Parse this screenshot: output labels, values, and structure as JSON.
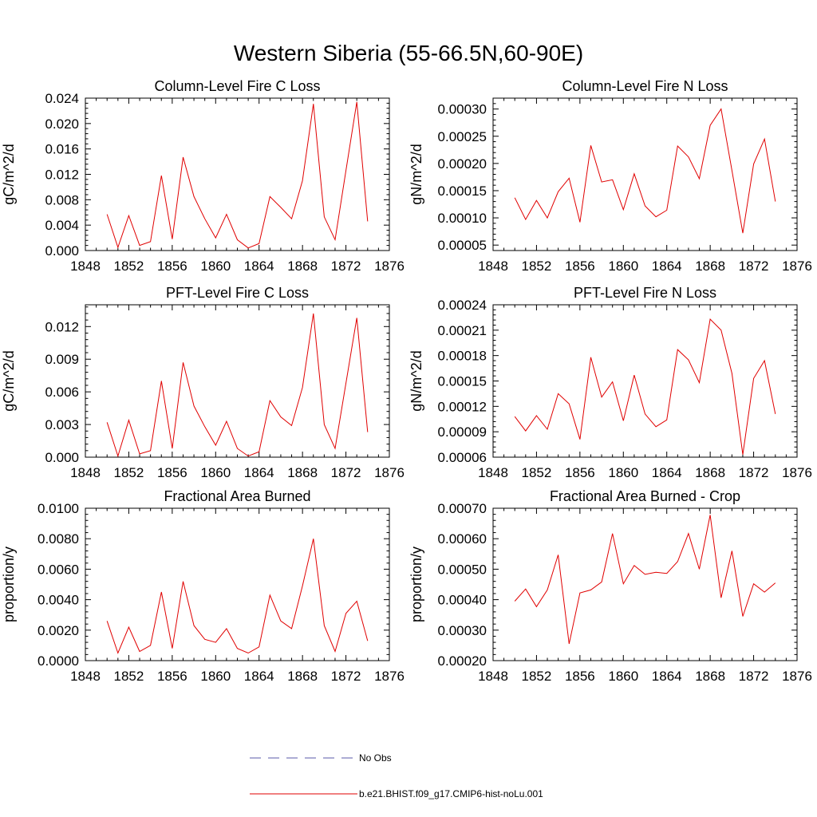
{
  "title": "Western Siberia (55-66.5N,60-90E)",
  "legend": {
    "items": [
      {
        "label": "No Obs",
        "color": "#5a5aa8",
        "dash": "14,9"
      },
      {
        "label": "b.e21.BHIST.f09_g17.CMIP6-hist-noLu.001",
        "color": "#e00000",
        "dash": ""
      }
    ]
  },
  "chart_data": [
    {
      "type": "line",
      "title": "Column-Level Fire C Loss",
      "ylabel": "gC/m^2/d",
      "xlim": [
        1848,
        1876
      ],
      "xticks": [
        "1848",
        "1852",
        "1856",
        "1860",
        "1864",
        "1868",
        "1872",
        "1876"
      ],
      "ylim": [
        0,
        0.024
      ],
      "yticks": [
        "0.000",
        "0.004",
        "0.008",
        "0.012",
        "0.016",
        "0.020",
        "0.024"
      ],
      "x": [
        1850,
        1851,
        1852,
        1853,
        1854,
        1855,
        1856,
        1857,
        1858,
        1859,
        1860,
        1861,
        1862,
        1863,
        1864,
        1865,
        1866,
        1867,
        1868,
        1869,
        1870,
        1871,
        1872,
        1873,
        1874
      ],
      "series": [
        {
          "name": "b.e21.BHIST.f09_g17.CMIP6-hist-noLu.001",
          "values": [
            0.0057,
            0.0005,
            0.0055,
            0.0008,
            0.0014,
            0.0118,
            0.0018,
            0.0147,
            0.0085,
            0.005,
            0.002,
            0.0057,
            0.0017,
            0.0004,
            0.0011,
            0.0085,
            0.0068,
            0.005,
            0.011,
            0.0231,
            0.0053,
            0.0017,
            0.0126,
            0.0234,
            0.0046
          ]
        }
      ]
    },
    {
      "type": "line",
      "title": "Column-Level Fire N Loss",
      "ylabel": "gN/m^2/d",
      "xlim": [
        1848,
        1876
      ],
      "xticks": [
        "1848",
        "1852",
        "1856",
        "1860",
        "1864",
        "1868",
        "1872",
        "1876"
      ],
      "ylim": [
        4e-05,
        0.00032
      ],
      "yticks": [
        "0.00005",
        "0.00010",
        "0.00015",
        "0.00020",
        "0.00025",
        "0.00030"
      ],
      "ytick_values": [
        5e-05,
        0.0001,
        0.00015,
        0.0002,
        0.00025,
        0.0003
      ],
      "x": [
        1850,
        1851,
        1852,
        1853,
        1854,
        1855,
        1856,
        1857,
        1858,
        1859,
        1860,
        1861,
        1862,
        1863,
        1864,
        1865,
        1866,
        1867,
        1868,
        1869,
        1870,
        1871,
        1872,
        1873,
        1874
      ],
      "series": [
        {
          "name": "b.e21.BHIST.f09_g17.CMIP6-hist-noLu.001",
          "values": [
            0.000137,
            9.7e-05,
            0.000132,
            0.0001,
            0.000148,
            0.000173,
            9.2e-05,
            0.000233,
            0.000166,
            0.00017,
            0.000115,
            0.000181,
            0.000122,
            0.000102,
            0.000114,
            0.000232,
            0.000212,
            0.000172,
            0.00027,
            0.0003,
            0.000187,
            7.2e-05,
            0.000199,
            0.000245,
            0.00013
          ]
        }
      ]
    },
    {
      "type": "line",
      "title": "PFT-Level Fire C Loss",
      "ylabel": "gC/m^2/d",
      "xlim": [
        1848,
        1876
      ],
      "xticks": [
        "1848",
        "1852",
        "1856",
        "1860",
        "1864",
        "1868",
        "1872",
        "1876"
      ],
      "ylim": [
        0,
        0.014
      ],
      "yticks": [
        "0.000",
        "0.003",
        "0.006",
        "0.009",
        "0.012"
      ],
      "ytick_values": [
        0,
        0.003,
        0.006,
        0.009,
        0.012
      ],
      "x": [
        1850,
        1851,
        1852,
        1853,
        1854,
        1855,
        1856,
        1857,
        1858,
        1859,
        1860,
        1861,
        1862,
        1863,
        1864,
        1865,
        1866,
        1867,
        1868,
        1869,
        1870,
        1871,
        1872,
        1873,
        1874
      ],
      "series": [
        {
          "name": "b.e21.BHIST.f09_g17.CMIP6-hist-noLu.001",
          "values": [
            0.0032,
            0.0001,
            0.0034,
            0.0003,
            0.0006,
            0.007,
            0.0008,
            0.0087,
            0.0047,
            0.0028,
            0.0011,
            0.0033,
            0.0008,
            0.0001,
            0.0005,
            0.0052,
            0.0037,
            0.0029,
            0.0064,
            0.0132,
            0.003,
            0.0008,
            0.0068,
            0.0128,
            0.0023
          ]
        }
      ]
    },
    {
      "type": "line",
      "title": "PFT-Level Fire N Loss",
      "ylabel": "gN/m^2/d",
      "xlim": [
        1848,
        1876
      ],
      "xticks": [
        "1848",
        "1852",
        "1856",
        "1860",
        "1864",
        "1868",
        "1872",
        "1876"
      ],
      "ylim": [
        6e-05,
        0.00024
      ],
      "yticks": [
        "0.00006",
        "0.00009",
        "0.00012",
        "0.00015",
        "0.00018",
        "0.00021",
        "0.00024"
      ],
      "ytick_values": [
        6e-05,
        9e-05,
        0.00012,
        0.00015,
        0.00018,
        0.00021,
        0.00024
      ],
      "x": [
        1850,
        1851,
        1852,
        1853,
        1854,
        1855,
        1856,
        1857,
        1858,
        1859,
        1860,
        1861,
        1862,
        1863,
        1864,
        1865,
        1866,
        1867,
        1868,
        1869,
        1870,
        1871,
        1872,
        1873,
        1874
      ],
      "series": [
        {
          "name": "b.e21.BHIST.f09_g17.CMIP6-hist-noLu.001",
          "values": [
            0.000108,
            9.1e-05,
            0.000109,
            9.3e-05,
            0.000135,
            0.000123,
            8.1e-05,
            0.000178,
            0.000131,
            0.000149,
            0.000103,
            0.000157,
            0.000111,
            9.6e-05,
            0.000104,
            0.000187,
            0.000175,
            0.000148,
            0.000223,
            0.00021,
            0.000159,
            6.3e-05,
            0.000153,
            0.000174,
            0.000111
          ]
        }
      ]
    },
    {
      "type": "line",
      "title": "Fractional Area Burned",
      "ylabel": "proportion/y",
      "xlim": [
        1848,
        1876
      ],
      "xticks": [
        "1848",
        "1852",
        "1856",
        "1860",
        "1864",
        "1868",
        "1872",
        "1876"
      ],
      "ylim": [
        0,
        0.01
      ],
      "yticks": [
        "0.0000",
        "0.0020",
        "0.0040",
        "0.0060",
        "0.0080",
        "0.0100"
      ],
      "ytick_values": [
        0,
        0.002,
        0.004,
        0.006,
        0.008,
        0.01
      ],
      "x": [
        1850,
        1851,
        1852,
        1853,
        1854,
        1855,
        1856,
        1857,
        1858,
        1859,
        1860,
        1861,
        1862,
        1863,
        1864,
        1865,
        1866,
        1867,
        1868,
        1869,
        1870,
        1871,
        1872,
        1873,
        1874
      ],
      "series": [
        {
          "name": "b.e21.BHIST.f09_g17.CMIP6-hist-noLu.001",
          "values": [
            0.0026,
            0.0005,
            0.0022,
            0.0006,
            0.001,
            0.0045,
            0.0008,
            0.0052,
            0.0023,
            0.0014,
            0.0012,
            0.0021,
            0.0008,
            0.0005,
            0.0009,
            0.0043,
            0.0026,
            0.0021,
            0.0049,
            0.008,
            0.0023,
            0.0006,
            0.0031,
            0.0039,
            0.0013
          ]
        }
      ]
    },
    {
      "type": "line",
      "title": "Fractional Area Burned - Crop",
      "ylabel": "proportion/y",
      "xlim": [
        1848,
        1876
      ],
      "xticks": [
        "1848",
        "1852",
        "1856",
        "1860",
        "1864",
        "1868",
        "1872",
        "1876"
      ],
      "ylim": [
        0.0002,
        0.0007
      ],
      "yticks": [
        "0.00020",
        "0.00030",
        "0.00040",
        "0.00050",
        "0.00060",
        "0.00070"
      ],
      "ytick_values": [
        0.0002,
        0.0003,
        0.0004,
        0.0005,
        0.0006,
        0.0007
      ],
      "x": [
        1850,
        1851,
        1852,
        1853,
        1854,
        1855,
        1856,
        1857,
        1858,
        1859,
        1860,
        1861,
        1862,
        1863,
        1864,
        1865,
        1866,
        1867,
        1868,
        1869,
        1870,
        1871,
        1872,
        1873,
        1874
      ],
      "series": [
        {
          "name": "b.e21.BHIST.f09_g17.CMIP6-hist-noLu.001",
          "values": [
            0.000395,
            0.000435,
            0.000377,
            0.000432,
            0.000547,
            0.000255,
            0.000422,
            0.000432,
            0.000458,
            0.000617,
            0.000452,
            0.000512,
            0.000483,
            0.00049,
            0.000486,
            0.000525,
            0.000617,
            0.0005,
            0.000678,
            0.000406,
            0.00056,
            0.000345,
            0.000452,
            0.000425,
            0.000455
          ]
        }
      ]
    }
  ]
}
